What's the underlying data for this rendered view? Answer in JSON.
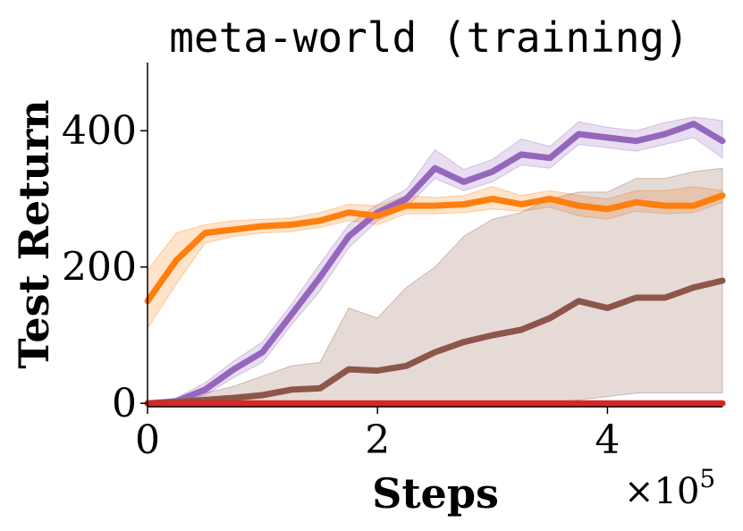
{
  "chart_data": {
    "type": "line",
    "title": "meta-world (training)",
    "xlabel": "Steps",
    "ylabel": "Test Return",
    "x_multiplier_label": "×10",
    "x_multiplier_exponent": "5",
    "xlim": [
      0,
      500000
    ],
    "ylim": [
      -5,
      500
    ],
    "xticks": [
      0,
      200000,
      400000
    ],
    "xtick_labels": [
      "0",
      "2",
      "4"
    ],
    "yticks": [
      0,
      200,
      400
    ],
    "ytick_labels": [
      "0",
      "200",
      "400"
    ],
    "grid": false,
    "legend": "none",
    "series": [
      {
        "color": "#9467bd",
        "x": [
          0,
          25000,
          50000,
          75000,
          100000,
          125000,
          150000,
          175000,
          200000,
          225000,
          250000,
          275000,
          300000,
          325000,
          350000,
          375000,
          400000,
          425000,
          450000,
          475000,
          500000
        ],
        "y": [
          0,
          3,
          20,
          50,
          75,
          130,
          185,
          245,
          280,
          300,
          345,
          325,
          340,
          365,
          360,
          395,
          390,
          385,
          395,
          410,
          385
        ],
        "lower": [
          0,
          0,
          12,
          38,
          60,
          115,
          165,
          228,
          268,
          288,
          330,
          312,
          325,
          350,
          345,
          380,
          375,
          370,
          380,
          390,
          360
        ],
        "upper": [
          1,
          8,
          30,
          62,
          90,
          145,
          205,
          262,
          292,
          314,
          372,
          343,
          358,
          388,
          377,
          413,
          405,
          400,
          412,
          420,
          415
        ]
      },
      {
        "color": "#ff7f0e",
        "x": [
          0,
          25000,
          50000,
          75000,
          100000,
          125000,
          150000,
          175000,
          200000,
          225000,
          250000,
          275000,
          300000,
          325000,
          350000,
          375000,
          400000,
          425000,
          450000,
          475000,
          500000
        ],
        "y": [
          150,
          210,
          250,
          255,
          260,
          262,
          268,
          280,
          275,
          290,
          290,
          292,
          300,
          292,
          300,
          290,
          285,
          295,
          290,
          290,
          305
        ],
        "lower": [
          110,
          175,
          235,
          245,
          250,
          252,
          258,
          268,
          262,
          278,
          278,
          280,
          285,
          282,
          288,
          275,
          270,
          282,
          278,
          280,
          295
        ],
        "upper": [
          195,
          250,
          262,
          268,
          270,
          272,
          280,
          292,
          290,
          305,
          302,
          305,
          318,
          305,
          312,
          305,
          300,
          312,
          312,
          318,
          312
        ]
      },
      {
        "color": "#8c564b",
        "x": [
          0,
          25000,
          50000,
          75000,
          100000,
          125000,
          150000,
          175000,
          200000,
          225000,
          250000,
          275000,
          300000,
          325000,
          350000,
          375000,
          400000,
          425000,
          450000,
          475000,
          500000
        ],
        "y": [
          0,
          2,
          5,
          8,
          12,
          20,
          22,
          50,
          48,
          55,
          75,
          90,
          100,
          108,
          125,
          150,
          140,
          155,
          155,
          170,
          180
        ],
        "lower": [
          0,
          0,
          0,
          0,
          0,
          0,
          0,
          0,
          0,
          0,
          0,
          0,
          0,
          0,
          0,
          5,
          10,
          15,
          15,
          15,
          15
        ],
        "upper": [
          0,
          5,
          15,
          25,
          40,
          55,
          60,
          140,
          125,
          170,
          200,
          245,
          270,
          280,
          300,
          310,
          310,
          330,
          330,
          340,
          345
        ]
      },
      {
        "color": "#d62728",
        "x": [
          0,
          25000,
          50000,
          75000,
          100000,
          125000,
          150000,
          175000,
          200000,
          225000,
          250000,
          275000,
          300000,
          325000,
          350000,
          375000,
          400000,
          425000,
          450000,
          475000,
          500000
        ],
        "y": [
          0,
          0,
          0,
          0,
          0,
          0,
          0,
          0,
          0,
          0,
          0,
          0,
          0,
          0,
          0,
          0,
          0,
          0,
          0,
          0,
          0
        ],
        "lower": [
          0,
          0,
          0,
          0,
          0,
          0,
          0,
          0,
          0,
          0,
          0,
          0,
          0,
          0,
          0,
          0,
          0,
          0,
          0,
          0,
          0
        ],
        "upper": [
          0,
          0,
          0,
          0,
          0,
          0,
          0,
          0,
          0,
          0,
          0,
          0,
          0,
          0,
          0,
          0,
          0,
          0,
          0,
          0,
          0
        ]
      }
    ]
  }
}
